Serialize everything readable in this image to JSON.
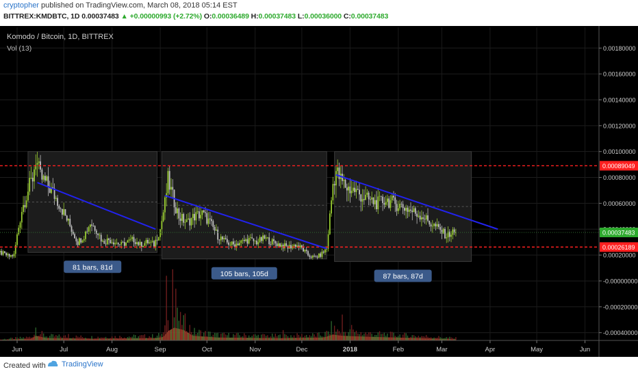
{
  "header": {
    "author": "cryptopher",
    "published": "published on TradingView.com, March 08, 2018 05:14 EST",
    "symbol": "BITTREX:KMDBTC, 1D",
    "last": "0.00037483",
    "change": "▲ +0.00000993 (+2.72%)",
    "o_label": "O:",
    "o": "0.00036489",
    "h_label": "H:",
    "h": "0.00037483",
    "l_label": "L:",
    "l": "0.00036000",
    "c_label": "C:",
    "c": "0.00037483"
  },
  "footer": {
    "created_with": "Created with",
    "brand": "TradingView"
  },
  "colors": {
    "background": "#000000",
    "up_candle": "#9acd32",
    "down_candle": "#c0c0c0",
    "trendline": "#2222ee",
    "support_resistance": "#ff2020",
    "range_box": "#1c1c1c",
    "label_box": "#3b5a8a",
    "volume": "#c8663a",
    "last_price_tag": "#2eaa2e"
  },
  "chart_data": {
    "type": "candlestick",
    "title": "Komodo / Bitcoin, 1D, BITTREX",
    "indicator": "Vol (13)",
    "ylim": [
      -0.00046,
      0.00196
    ],
    "y_ticks": [
      "0.00180000",
      "0.00160000",
      "0.00140000",
      "0.00120000",
      "0.00100000",
      "0.00080000",
      "0.00060000",
      "0.00040000",
      "0.00020000",
      "-0.00000000",
      "-0.00020000",
      "-0.00040000"
    ],
    "y_values": [
      0.0018,
      0.0016,
      0.0014,
      0.0012,
      0.001,
      0.0008,
      0.0006,
      0.0004,
      0.0002,
      0,
      -0.0002,
      -0.0004
    ],
    "x_ticks": [
      "Jun",
      "Jul",
      "Aug",
      "Sep",
      "Oct",
      "Nov",
      "Dec",
      "2018",
      "Feb",
      "Mar",
      "Apr",
      "May",
      "Jun"
    ],
    "x_tick_days": [
      11,
      41,
      72,
      103,
      133,
      164,
      194,
      225,
      256,
      284,
      315,
      345,
      376
    ],
    "x_range_days": [
      0,
      385
    ],
    "price_path": [
      [
        0,
        0.00022
      ],
      [
        6,
        0.00019
      ],
      [
        9,
        0.0002
      ],
      [
        11,
        0.00035
      ],
      [
        14,
        0.00055
      ],
      [
        18,
        0.0007
      ],
      [
        21,
        0.0008
      ],
      [
        23,
        0.00095
      ],
      [
        26,
        0.0008
      ],
      [
        30,
        0.00075
      ],
      [
        33,
        0.0007
      ],
      [
        38,
        0.0006
      ],
      [
        42,
        0.0005
      ],
      [
        46,
        0.0004
      ],
      [
        50,
        0.0003
      ],
      [
        54,
        0.00035
      ],
      [
        58,
        0.00045
      ],
      [
        62,
        0.0004
      ],
      [
        66,
        0.0003
      ],
      [
        70,
        0.00032
      ],
      [
        74,
        0.0003
      ],
      [
        78,
        0.00028
      ],
      [
        82,
        0.0003
      ],
      [
        86,
        0.00032
      ],
      [
        90,
        0.00028
      ],
      [
        95,
        0.0003
      ],
      [
        99,
        0.00028
      ],
      [
        103,
        0.0004
      ],
      [
        106,
        0.0006
      ],
      [
        108,
        0.00078
      ],
      [
        111,
        0.00065
      ],
      [
        115,
        0.0005
      ],
      [
        120,
        0.00045
      ],
      [
        125,
        0.0005
      ],
      [
        130,
        0.00052
      ],
      [
        135,
        0.00045
      ],
      [
        140,
        0.00035
      ],
      [
        145,
        0.0003
      ],
      [
        150,
        0.00028
      ],
      [
        155,
        0.0003
      ],
      [
        160,
        0.00032
      ],
      [
        165,
        0.0003
      ],
      [
        170,
        0.00033
      ],
      [
        175,
        0.0003
      ],
      [
        180,
        0.00028
      ],
      [
        185,
        0.00026
      ],
      [
        190,
        0.00028
      ],
      [
        194,
        0.00025
      ],
      [
        198,
        0.0002
      ],
      [
        202,
        0.00018
      ],
      [
        206,
        0.0002
      ],
      [
        210,
        0.00025
      ],
      [
        212,
        0.0005
      ],
      [
        214,
        0.00075
      ],
      [
        216,
        0.00085
      ],
      [
        219,
        0.00078
      ],
      [
        223,
        0.00072
      ],
      [
        228,
        0.0007
      ],
      [
        233,
        0.00065
      ],
      [
        238,
        0.00062
      ],
      [
        243,
        0.0006
      ],
      [
        248,
        0.00063
      ],
      [
        253,
        0.0006
      ],
      [
        258,
        0.00058
      ],
      [
        263,
        0.00055
      ],
      [
        268,
        0.00052
      ],
      [
        272,
        0.0005
      ],
      [
        276,
        0.00045
      ],
      [
        280,
        0.00042
      ],
      [
        284,
        0.00038
      ],
      [
        287,
        0.00035
      ],
      [
        290,
        0.00037
      ],
      [
        293,
        0.00037483
      ]
    ],
    "volume_path": [
      [
        0,
        1e-05
      ],
      [
        20,
        3e-05
      ],
      [
        23,
        8e-05
      ],
      [
        30,
        4e-05
      ],
      [
        60,
        3e-05
      ],
      [
        100,
        4e-05
      ],
      [
        105,
        6e-05
      ],
      [
        108,
        0.00016
      ],
      [
        112,
        0.00022
      ],
      [
        118,
        0.00018
      ],
      [
        124,
        8e-05
      ],
      [
        140,
        5e-05
      ],
      [
        180,
        4e-05
      ],
      [
        208,
        5e-05
      ],
      [
        214,
        0.0001
      ],
      [
        220,
        8e-05
      ],
      [
        240,
        6e-05
      ],
      [
        270,
        4e-05
      ],
      [
        293,
        2e-05
      ]
    ],
    "volume_spikes": [
      [
        23,
        0.0001
      ],
      [
        44,
        5e-05
      ],
      [
        107,
        0.0005
      ],
      [
        111,
        0.00055
      ],
      [
        113,
        0.0004
      ],
      [
        116,
        0.00022
      ],
      [
        182,
        8e-05
      ],
      [
        213,
        0.00015
      ],
      [
        220,
        0.0002
      ],
      [
        226,
        0.00012
      ]
    ],
    "horizontal_levels": [
      {
        "value": 0.00089049,
        "label": "0.00089049"
      },
      {
        "value": 0.00026189,
        "label": "0.00026189"
      }
    ],
    "last_price": {
      "value": 0.00037483,
      "label": "0.00037483"
    },
    "range_boxes": [
      {
        "start": 18,
        "end": 101,
        "low": 0.00022,
        "high": 0.001,
        "label": "81 bars, 81d"
      },
      {
        "start": 104,
        "end": 210,
        "low": 0.00017,
        "high": 0.001,
        "label": "105 bars, 105d"
      },
      {
        "start": 215,
        "end": 303,
        "low": 0.00015,
        "high": 0.001,
        "label": "87 bars, 87d"
      }
    ],
    "trendlines": [
      {
        "x1": 24,
        "y1": 0.00076,
        "x2": 100,
        "y2": 0.0004
      },
      {
        "x1": 106,
        "y1": 0.00066,
        "x2": 210,
        "y2": 0.00025
      },
      {
        "x1": 216,
        "y1": 0.00082,
        "x2": 320,
        "y2": 0.0004
      }
    ]
  }
}
